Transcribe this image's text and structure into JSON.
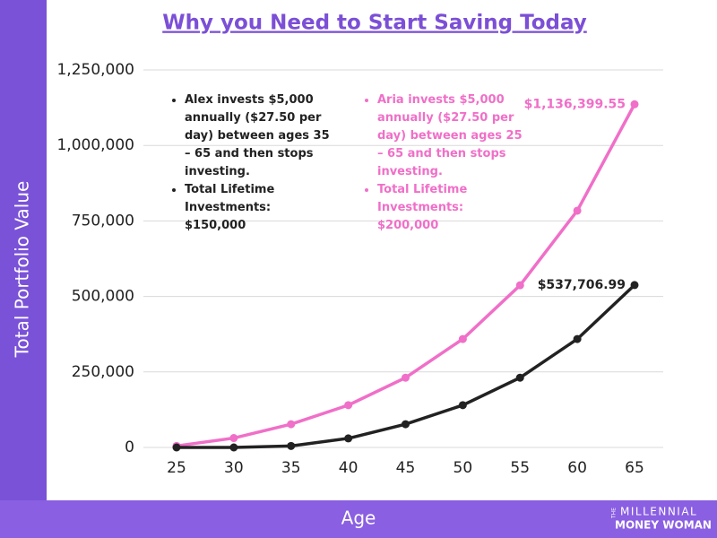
{
  "chart_data": {
    "type": "line",
    "title": "Why you Need to Start Saving Today",
    "x_label": "Age",
    "y_label": "Total Portfolio Value",
    "x": [
      25,
      30,
      35,
      40,
      45,
      50,
      55,
      60,
      65
    ],
    "series": [
      {
        "color": "#f06fc8",
        "values": [
          5000,
          31000,
          77000,
          140000,
          231000,
          359000,
          537000,
          784000,
          1136399.55
        ],
        "value_labels": [
          null,
          null,
          null,
          null,
          null,
          null,
          null,
          null,
          "$1,136,399.55"
        ]
      },
      {
        "color": "#222222",
        "values": [
          0,
          0,
          5000,
          30000,
          77000,
          140000,
          231000,
          359000,
          537706.99
        ],
        "value_labels": [
          null,
          null,
          null,
          null,
          null,
          null,
          null,
          null,
          "$537,706.99"
        ]
      }
    ],
    "xlim": [
      25,
      65
    ],
    "xticks": [
      25,
      30,
      35,
      40,
      45,
      50,
      55,
      60,
      65
    ],
    "ylim": [
      0,
      1250000
    ],
    "yticks": [
      0,
      {
        "value": 250000,
        "label": "250,000"
      },
      {
        "value": 500000,
        "label": "500,000"
      },
      {
        "value": 750000,
        "label": "750,000"
      },
      {
        "value": 1000000,
        "label": "1,000,000"
      },
      {
        "value": 1250000,
        "label": "1,250,000"
      }
    ],
    "grid": true,
    "notes": [
      {
        "color": "#222222",
        "items": [
          "Alex invests $5,000 annually ($27.50 per day) between ages 35 – 65 and then stops investing.",
          "Total Lifetime Investments: $150,000"
        ]
      },
      {
        "color": "#f06fc8",
        "items": [
          "Aria invests $5,000 annually ($27.50 per day) between ages 25 – 65 and then stops investing.",
          "Total Lifetime Investments: $200,000"
        ]
      }
    ]
  },
  "logo": [
    "THE",
    "MILLENNIAL",
    "MONEY WOMAN"
  ]
}
